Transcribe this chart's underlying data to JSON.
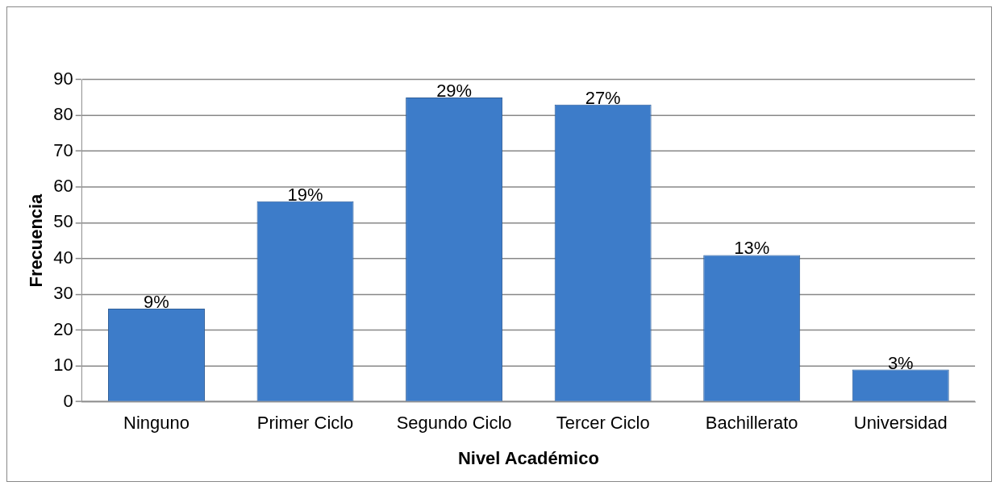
{
  "chart_data": {
    "type": "bar",
    "xlabel": "Nivel Académico",
    "ylabel": "Frecuencia",
    "categories": [
      "Ninguno",
      "Primer Ciclo",
      "Segundo Ciclo",
      "Tercer Ciclo",
      "Bachillerato",
      "Universidad"
    ],
    "values": [
      26,
      56,
      85,
      83,
      41,
      9
    ],
    "annotations": [
      {
        "text": "9%",
        "x": "Ninguno",
        "y": 26
      },
      {
        "text": "19%",
        "x": "Primer Ciclo",
        "y": 56
      },
      {
        "text": "29%",
        "x": "Segundo Ciclo",
        "y": 85
      },
      {
        "text": "27%",
        "x": "Tercer Ciclo",
        "y": 83
      },
      {
        "text": "13%",
        "x": "Bachillerato",
        "y": 41
      },
      {
        "text": "3%",
        "x": "Universidad",
        "y": 9
      }
    ],
    "color": "#3d7cc9",
    "ylim": [
      0,
      90
    ],
    "yticks": [
      0,
      10,
      20,
      30,
      40,
      50,
      60,
      70,
      80,
      90
    ],
    "grid": "y",
    "legend": false
  }
}
